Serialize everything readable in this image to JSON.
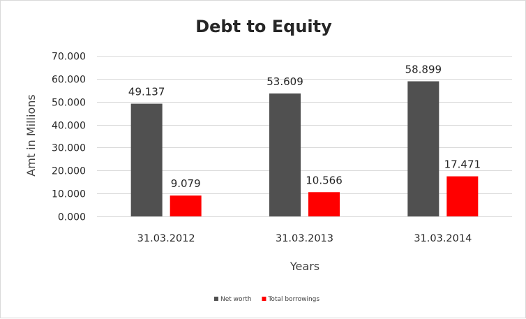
{
  "chart_data": {
    "type": "bar",
    "title": "Debt to Equity",
    "xlabel": "Years",
    "ylabel": "Amt in Millions",
    "categories": [
      "31.03.2012",
      "31.03.2013",
      "31.03.2014"
    ],
    "series": [
      {
        "name": "Net worth",
        "values": [
          49.137,
          53.609,
          58.899
        ],
        "labels": [
          "49.137",
          "53.609",
          "58.899"
        ],
        "color": "#505050"
      },
      {
        "name": "Total borrowings",
        "values": [
          9.079,
          10.566,
          17.471
        ],
        "labels": [
          "9.079",
          "10.566",
          "17.471"
        ],
        "color": "#ff0000"
      }
    ],
    "ylim": [
      0,
      70
    ],
    "yticks": [
      0,
      10,
      20,
      30,
      40,
      50,
      60,
      70
    ],
    "ytick_labels": [
      "0.000",
      "10.000",
      "20.000",
      "30.000",
      "40.000",
      "50.000",
      "60.000",
      "70.000"
    ],
    "grid": true,
    "legend_position": "bottom"
  }
}
